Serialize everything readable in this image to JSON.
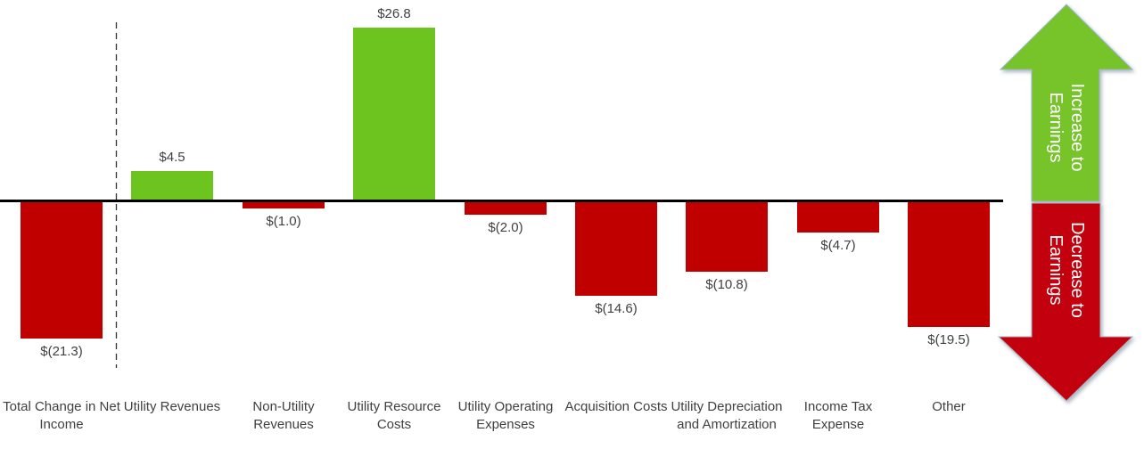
{
  "chart_data": {
    "type": "bar",
    "subtype": "waterfall-contribution",
    "title": "",
    "xlabel": "",
    "ylabel": "",
    "grid": false,
    "legend": "none",
    "baseline_value": 0,
    "separator_after_first_bar": true,
    "categories": [
      "Total Change in Net Income",
      "Utility Revenues",
      "Non-Utility Revenues",
      "Utility Resource Costs",
      "Utility Operating Expenses",
      "Acquisition Costs",
      "Utility Depreciation and Amortization",
      "Income Tax Expense",
      "Other"
    ],
    "values": [
      -21.3,
      4.5,
      -1.0,
      26.8,
      -2.0,
      -14.6,
      -10.8,
      -4.7,
      -19.5
    ],
    "bars": [
      {
        "category": "Total Change in Net Income",
        "label_lines": [
          "Total Change in Net",
          "Income"
        ],
        "value": -21.3,
        "value_label": "$(21.3)",
        "direction": "decrease"
      },
      {
        "category": "Utility Revenues",
        "label_lines": [
          "Utility Revenues"
        ],
        "value": 4.5,
        "value_label": "$4.5",
        "direction": "increase"
      },
      {
        "category": "Non-Utility Revenues",
        "label_lines": [
          "Non-Utility",
          "Revenues"
        ],
        "value": -1.0,
        "value_label": "$(1.0)",
        "direction": "decrease"
      },
      {
        "category": "Utility Resource Costs",
        "label_lines": [
          "Utility Resource",
          "Costs"
        ],
        "value": 26.8,
        "value_label": "$26.8",
        "direction": "increase"
      },
      {
        "category": "Utility Operating Expenses",
        "label_lines": [
          "Utility Operating",
          "Expenses"
        ],
        "value": -2.0,
        "value_label": "$(2.0)",
        "direction": "decrease"
      },
      {
        "category": "Acquisition Costs",
        "label_lines": [
          "Acquisition Costs"
        ],
        "value": -14.6,
        "value_label": "$(14.6)",
        "direction": "decrease"
      },
      {
        "category": "Utility Depreciation and Amortization",
        "label_lines": [
          "Utility Depreciation",
          "and Amortization"
        ],
        "value": -10.8,
        "value_label": "$(10.8)",
        "direction": "decrease"
      },
      {
        "category": "Income Tax Expense",
        "label_lines": [
          "Income Tax",
          "Expense"
        ],
        "value": -4.7,
        "value_label": "$(4.7)",
        "direction": "decrease"
      },
      {
        "category": "Other",
        "label_lines": [
          "Other"
        ],
        "value": -19.5,
        "value_label": "$(19.5)",
        "direction": "decrease"
      }
    ],
    "colors": {
      "increase": "#6EC41E",
      "decrease": "#C00000",
      "axis": "#000000",
      "label_text": "#404040"
    }
  },
  "annotations": {
    "increase_arrow": {
      "label": "Increase to Earnings",
      "lines": [
        "Increase to",
        "Earnings"
      ],
      "color": "#76C32C"
    },
    "decrease_arrow": {
      "label": "Decrease to Earnings",
      "lines": [
        "Decrease to",
        "Earnings"
      ],
      "color": "#C3060F"
    }
  }
}
